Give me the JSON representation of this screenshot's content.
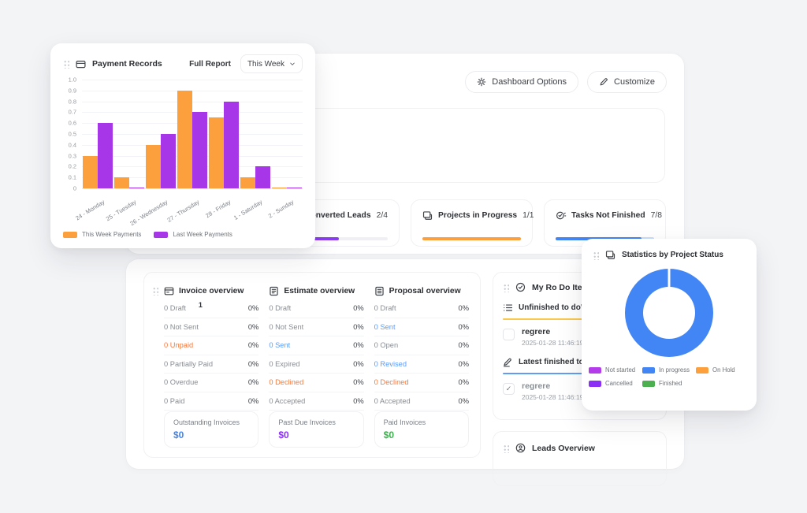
{
  "colors": {
    "accent_blue": "#4285F4",
    "accent_orange": "#FBA03C",
    "accent_purple": "#A636E8",
    "accent_violet": "#8B2FF5",
    "accent_green": "#3FAE4E",
    "row_orange": "#F4793B",
    "row_blue": "#5B9BF8",
    "row_default": "#888D94"
  },
  "header": {
    "dashboard_options": {
      "icon": "gear-icon",
      "label": "Dashboard Options"
    },
    "customize": {
      "icon": "pencil-icon",
      "label": "Customize"
    }
  },
  "payment_card": {
    "icon": "payment-icon",
    "title": "Payment Records",
    "full_report_label": "Full Report",
    "range_label": "This Week"
  },
  "chart_data": [
    {
      "type": "bar",
      "title": "Payment Records",
      "categories": [
        "24 - Monday",
        "25 - Tuesday",
        "26 - Wednesday",
        "27 - Thursday",
        "28 - Friday",
        "1 - Saturday",
        "2 - Sunday"
      ],
      "series": [
        {
          "name": "This Week Payments",
          "color": "#FBA03C",
          "values": [
            0.3,
            0.1,
            0.4,
            0.9,
            0.65,
            0.1,
            0.01
          ]
        },
        {
          "name": "Last Week Payments",
          "color": "#A636E8",
          "values": [
            0.6,
            0.01,
            0.5,
            0.7,
            0.8,
            0.2,
            0.01
          ]
        }
      ],
      "xlabel": "",
      "ylabel": "",
      "ylim": [
        0,
        1
      ],
      "yticks": [
        "1.0",
        "0.9",
        "0.8",
        "0.7",
        "0.6",
        "0.5",
        "0.4",
        "0.3",
        "0.2",
        "0.1",
        "0"
      ],
      "grid": true,
      "legend_position": "bottom"
    },
    {
      "type": "pie",
      "donut": true,
      "title": "Statistics by Project Status",
      "labels": [
        "Not started",
        "In progress",
        "On Hold",
        "Cancelled",
        "Finished"
      ],
      "values": [
        0,
        1,
        0,
        0,
        0
      ],
      "colors": [
        "#B43CEB",
        "#4285F4",
        "#FBA03C",
        "#8B2FF5",
        "#4CAF50"
      ],
      "legend_position": "bottom"
    }
  ],
  "stat_cards": [
    {
      "icon": "leads-icon",
      "label": "Converted Leads",
      "value": "2/4",
      "pct": 50,
      "bar_color": "#8B3DF2",
      "track_color": "#F0F0F4"
    },
    {
      "icon": "projects-icon",
      "label": "Projects in Progress",
      "value": "1/1",
      "pct": 100,
      "bar_color": "#FBA03C",
      "track_color": "#F0F0F4"
    },
    {
      "icon": "tasks-icon",
      "label": "Tasks Not Finished",
      "value": "7/8",
      "pct": 87.5,
      "bar_color": "#4285F4",
      "track_color": "#C9DEFB"
    }
  ],
  "overview": {
    "columns": [
      {
        "icon": "invoice-icon",
        "title": "Invoice overview",
        "rows": [
          {
            "label": "0 Draft",
            "note": "1",
            "value": "0%",
            "tone": "default"
          },
          {
            "label": "0 Not Sent",
            "value": "0%",
            "tone": "default"
          },
          {
            "label": "0 Unpaid",
            "value": "0%",
            "tone": "orange"
          },
          {
            "label": "0 Partially Paid",
            "value": "0%",
            "tone": "default"
          },
          {
            "label": "0 Overdue",
            "value": "0%",
            "tone": "default"
          },
          {
            "label": "0 Paid",
            "value": "0%",
            "tone": "default"
          }
        ]
      },
      {
        "icon": "estimate-icon",
        "title": "Estimate overview",
        "rows": [
          {
            "label": "0 Draft",
            "value": "0%",
            "tone": "default"
          },
          {
            "label": "0 Not Sent",
            "value": "0%",
            "tone": "default"
          },
          {
            "label": "0 Sent",
            "value": "0%",
            "tone": "blue"
          },
          {
            "label": "0 Expired",
            "value": "0%",
            "tone": "default"
          },
          {
            "label": "0 Declined",
            "value": "0%",
            "tone": "orange"
          },
          {
            "label": "0 Accepted",
            "value": "0%",
            "tone": "default"
          }
        ]
      },
      {
        "icon": "proposal-icon",
        "title": "Proposal overview",
        "rows": [
          {
            "label": "0 Draft",
            "value": "0%",
            "tone": "default"
          },
          {
            "label": "0 Sent",
            "value": "0%",
            "tone": "blue"
          },
          {
            "label": "0 Open",
            "value": "0%",
            "tone": "default"
          },
          {
            "label": "0 Revised",
            "value": "0%",
            "tone": "blue"
          },
          {
            "label": "0 Declined",
            "value": "0%",
            "tone": "orange"
          },
          {
            "label": "0 Accepted",
            "value": "0%",
            "tone": "default"
          }
        ]
      }
    ],
    "summary": [
      {
        "label": "Outstanding Invoices",
        "value": "$0",
        "color": "#4285F4"
      },
      {
        "label": "Past Due Invoices",
        "value": "$0",
        "color": "#8B2FF5"
      },
      {
        "label": "Paid Invoices",
        "value": "$0",
        "color": "#3FAE4E"
      }
    ]
  },
  "todo_card": {
    "icon": "todo-icon",
    "title": "My Ro Do Items",
    "sections": [
      {
        "icon": "list-icon",
        "title": "Unfinished to do's",
        "underline": "#FBC74D",
        "items": [
          {
            "text": "regrere",
            "date": "2025-01-28 11:46:19",
            "done": false
          }
        ]
      },
      {
        "icon": "pencil-small-icon",
        "title": "Latest finished to do's",
        "underline": "#5F9CF8",
        "items": [
          {
            "text": "regrere",
            "date": "2025-01-28 11:46:19",
            "done": true
          }
        ]
      }
    ]
  },
  "stats_card": {
    "icon": "stats-icon",
    "title": "Statistics by Project Status"
  },
  "leads_card": {
    "icon": "leads-icon",
    "title": "Leads Overview"
  }
}
